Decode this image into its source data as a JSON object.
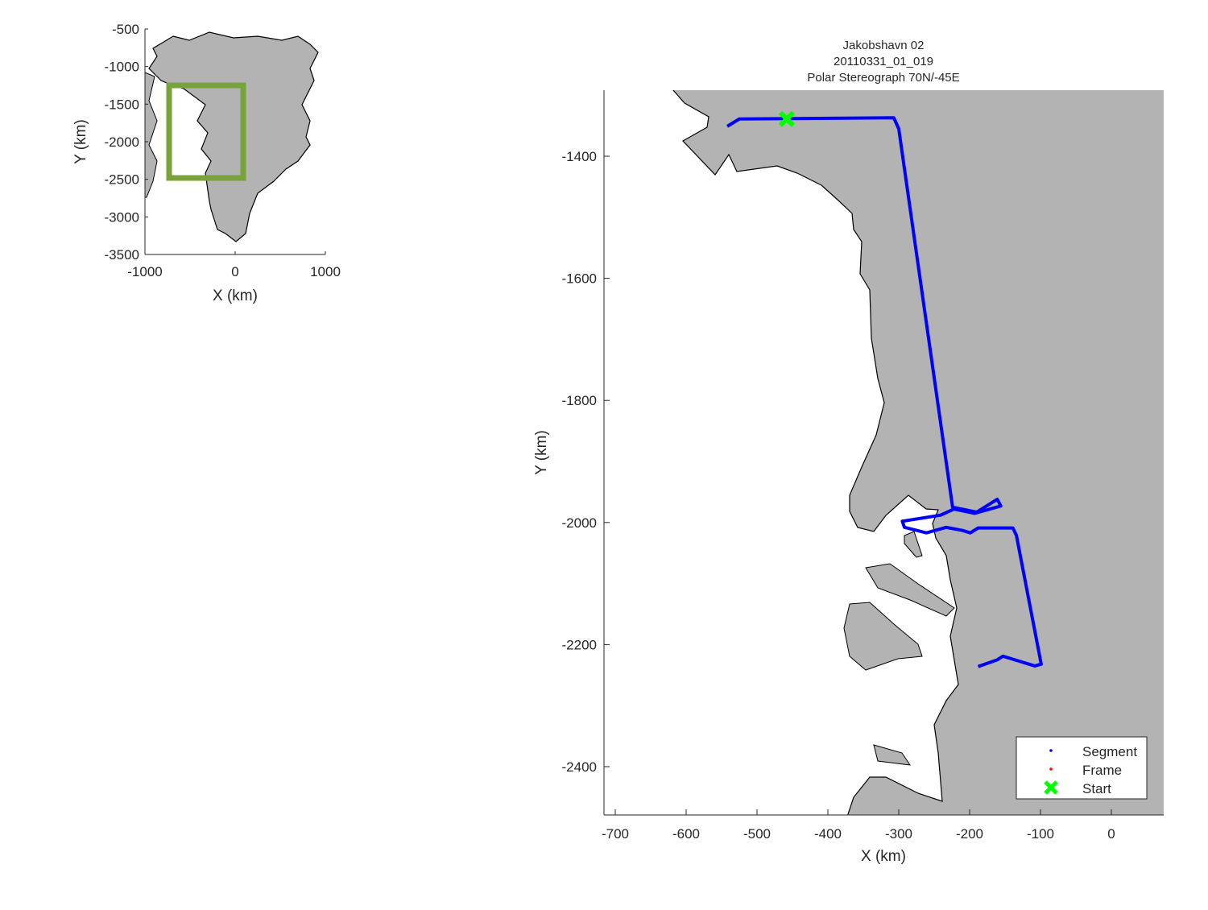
{
  "inset": {
    "xlabel": "X (km)",
    "ylabel": "Y (km)",
    "xticks": [
      -1000,
      0,
      1000
    ],
    "yticks": [
      -500,
      -1000,
      -1500,
      -2000,
      -2500,
      -3000,
      -3500
    ],
    "xlim": [
      -1000,
      1000
    ],
    "ylim": [
      -3500,
      -500
    ],
    "box_color": "#77a33a",
    "land_color": "#b3b3b3"
  },
  "main": {
    "title": [
      "Jakobshavn 02",
      "20110331_01_019",
      "Polar Stereograph 70N/-45E"
    ],
    "xlabel": "X (km)",
    "ylabel": "Y (km)",
    "xticks": [
      -700,
      -600,
      -500,
      -400,
      -300,
      -200,
      -100,
      0
    ],
    "yticks": [
      -1400,
      -1600,
      -1800,
      -2000,
      -2200,
      -2400
    ],
    "xlim": [
      -716,
      74
    ],
    "ylim": [
      -2479,
      -1292
    ],
    "land_color": "#b3b3b3",
    "legend": [
      {
        "label": "Segment",
        "color": "#0000ff",
        "marker": "dot"
      },
      {
        "label": "Frame",
        "color": "#ff0000",
        "marker": "dot"
      },
      {
        "label": "Start",
        "color": "#00ff00",
        "marker": "x"
      }
    ]
  },
  "chart_data": {
    "type": "line",
    "segment_color": "#0000ff",
    "start_color": "#00ff00",
    "start": [
      -458,
      -1339
    ],
    "segment": [
      [
        -542,
        -1351
      ],
      [
        -525,
        -1339
      ],
      [
        -307,
        -1337
      ],
      [
        -300,
        -1355
      ],
      [
        -224,
        -1975
      ],
      [
        -190,
        -1983
      ],
      [
        -161,
        -1962
      ],
      [
        -156,
        -1973
      ],
      [
        -193,
        -1985
      ],
      [
        -222,
        -1978
      ],
      [
        -241,
        -1988
      ],
      [
        -295,
        -1998
      ],
      [
        -292,
        -2008
      ],
      [
        -261,
        -2017
      ],
      [
        -233,
        -2008
      ],
      [
        -210,
        -2013
      ],
      [
        -199,
        -2017
      ],
      [
        -188,
        -2009
      ],
      [
        -139,
        -2009
      ],
      [
        -134,
        -2021
      ],
      [
        -99,
        -2232
      ],
      [
        -108,
        -2235
      ],
      [
        -153,
        -2219
      ],
      [
        -161,
        -2225
      ],
      [
        -188,
        -2236
      ]
    ]
  }
}
